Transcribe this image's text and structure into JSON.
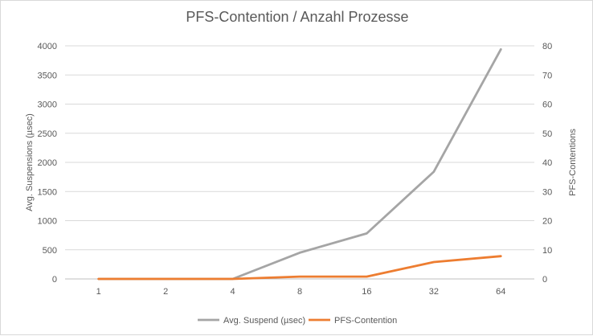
{
  "chart_data": {
    "type": "line",
    "title": "PFS-Contention / Anzahl Prozesse",
    "xlabel": "",
    "ylabel": "Avg. Suspensions (µsec)",
    "y2label": "PFS-Contentions",
    "categories": [
      "1",
      "2",
      "4",
      "8",
      "16",
      "32",
      "64"
    ],
    "ylim": [
      0,
      4000
    ],
    "yticks": [
      0,
      500,
      1000,
      1500,
      2000,
      2500,
      3000,
      3500,
      4000
    ],
    "y2lim": [
      0,
      80
    ],
    "y2ticks": [
      0,
      10,
      20,
      30,
      40,
      50,
      60,
      70,
      80
    ],
    "series": [
      {
        "name": "Avg. Suspend (µsec)",
        "axis": "left",
        "color": "#a5a5a5",
        "values": [
          0,
          0,
          0,
          450,
          780,
          1840,
          3940
        ]
      },
      {
        "name": "PFS-Contention",
        "axis": "right",
        "color": "#ed7d31",
        "values": [
          0,
          0,
          0,
          0.8,
          0.8,
          5.8,
          7.8
        ]
      }
    ],
    "grid": true,
    "legend": "bottom"
  }
}
